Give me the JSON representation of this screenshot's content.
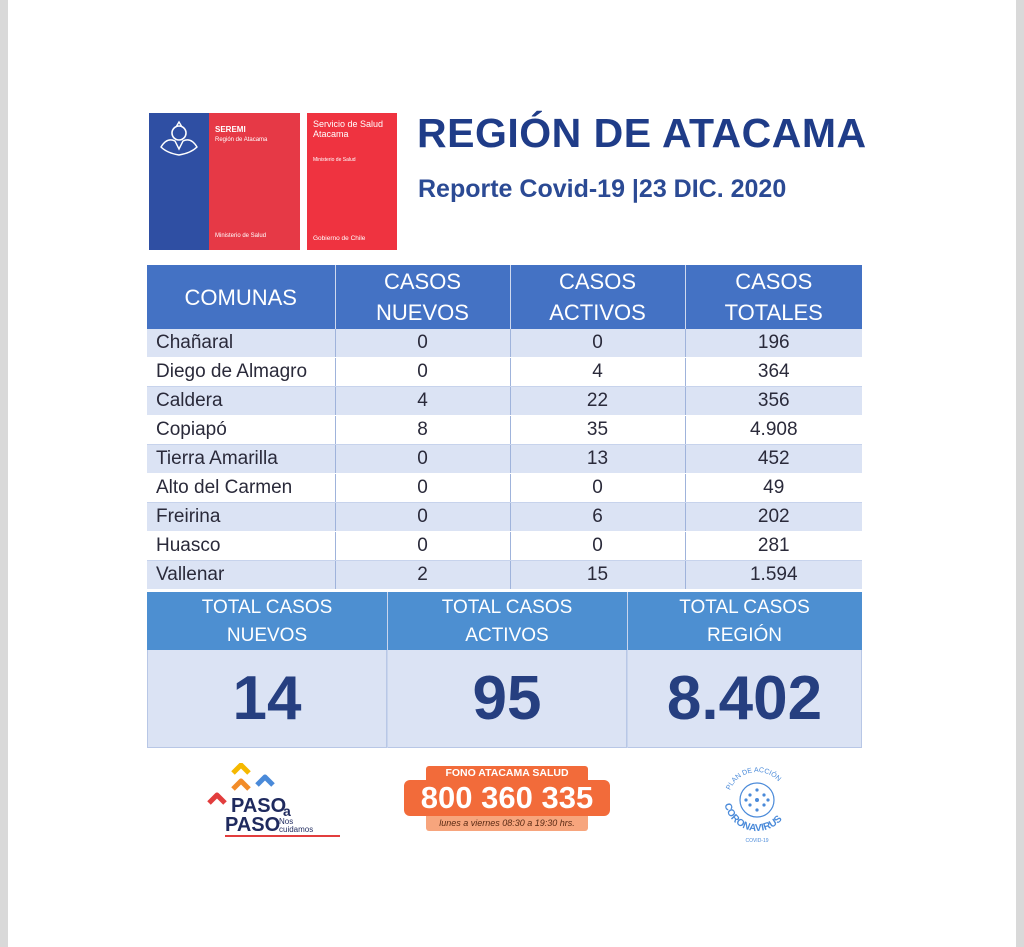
{
  "header": {
    "seremi_logo": {
      "title": "SEREMI",
      "subtitle": "Región de Atacama",
      "footer": "Ministerio de Salud"
    },
    "servicio_logo": {
      "title": "Servicio de Salud Atacama",
      "subtitle": "Ministerio de Salud",
      "footer": "Gobierno de Chile"
    },
    "region_title": "REGIÓN DE ATACAMA",
    "report_subtitle": "Reporte Covid-19 |23 DIC. 2020"
  },
  "table": {
    "headers": [
      "COMUNAS",
      "CASOS NUEVOS",
      "CASOS ACTIVOS",
      "CASOS TOTALES"
    ],
    "rows": [
      {
        "comuna": "Chañaral",
        "nuevos": "0",
        "activos": "0",
        "totales": "196"
      },
      {
        "comuna": "Diego de Almagro",
        "nuevos": "0",
        "activos": "4",
        "totales": "364"
      },
      {
        "comuna": "Caldera",
        "nuevos": "4",
        "activos": "22",
        "totales": "356"
      },
      {
        "comuna": "Copiapó",
        "nuevos": "8",
        "activos": "35",
        "totales": "4.908"
      },
      {
        "comuna": "Tierra Amarilla",
        "nuevos": "0",
        "activos": "13",
        "totales": "452"
      },
      {
        "comuna": "Alto del Carmen",
        "nuevos": "0",
        "activos": "0",
        "totales": "49"
      },
      {
        "comuna": "Freirina",
        "nuevos": "0",
        "activos": "6",
        "totales": "202"
      },
      {
        "comuna": "Huasco",
        "nuevos": "0",
        "activos": "0",
        "totales": "281"
      },
      {
        "comuna": "Vallenar",
        "nuevos": "2",
        "activos": "15",
        "totales": "1.594"
      }
    ]
  },
  "totals": [
    {
      "label_line1": "TOTAL CASOS",
      "label_line2": "NUEVOS",
      "value": "14"
    },
    {
      "label_line1": "TOTAL CASOS",
      "label_line2": "ACTIVOS",
      "value": "95"
    },
    {
      "label_line1": "TOTAL CASOS",
      "label_line2": "REGIÓN",
      "value": "8.402"
    }
  ],
  "footer": {
    "paso": {
      "word1": "PASO",
      "a": "a",
      "word2": "PASO",
      "tag1": "Nos",
      "tag2": "cuidamos"
    },
    "fono": {
      "tag": "FONO ATACAMA SALUD",
      "number": "800 360 335",
      "hours": "lunes a viernes 08:30 a 19:30 hrs."
    },
    "plan": {
      "top_text": "PLAN DE ACCIÓN",
      "bottom_text": "CORONAVIRUS",
      "small": "COVID-19"
    }
  },
  "colors": {
    "header_blue": "#4472c4",
    "totals_blue": "#4d8fd1",
    "title_navy": "#1f3c88",
    "row_light": "#dbe3f4",
    "fono_orange": "#f26b3a"
  }
}
